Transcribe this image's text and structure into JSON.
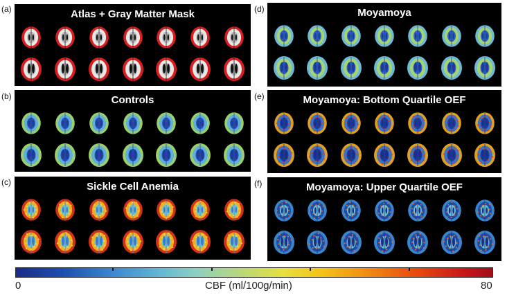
{
  "panels": [
    {
      "letter": "(a)",
      "title": "Atlas + Gray Matter Mask",
      "palette": "atlas"
    },
    {
      "letter": "(b)",
      "title": "Controls",
      "palette": "controls"
    },
    {
      "letter": "(c)",
      "title": "Sickle Cell Anemia",
      "palette": "sickle"
    },
    {
      "letter": "(d)",
      "title": "Moyamoya",
      "palette": "moyamoya"
    },
    {
      "letter": "(e)",
      "title": "Moyamoya: Bottom Quartile OEF",
      "palette": "bottom"
    },
    {
      "letter": "(f)",
      "title": "Moyamoya: Upper Quartile OEF",
      "palette": "upper"
    }
  ],
  "colorbar": {
    "min_label": "0",
    "max_label": "80",
    "unit_label": "CBF (ml/100g/min)",
    "min": 0,
    "max": 80
  },
  "colors": {
    "panel_background": "#000000",
    "title_text": "#ffffff"
  }
}
